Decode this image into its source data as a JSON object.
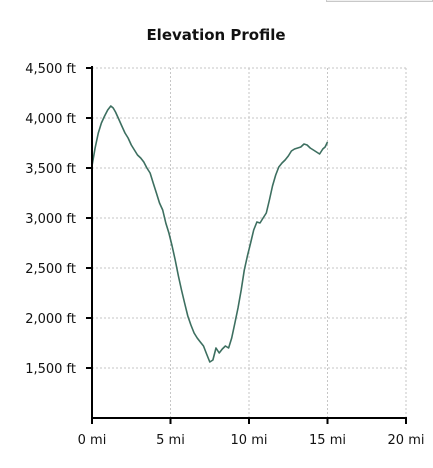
{
  "colors": {
    "line": "#3d6f60",
    "grid": "#c6c6c6",
    "axis": "#000000"
  },
  "chart_data": {
    "type": "line",
    "title": "Elevation Profile",
    "xlabel": "",
    "ylabel": "",
    "x_unit": "mi",
    "y_unit": "ft",
    "xlim": [
      0,
      20
    ],
    "ylim": [
      1000,
      4500
    ],
    "x_ticks": [
      0,
      5,
      10,
      15,
      20
    ],
    "x_tick_labels": [
      "0 mi",
      "5 mi",
      "10 mi",
      "15 mi",
      "20 mi"
    ],
    "y_ticks": [
      1500,
      2000,
      2500,
      3000,
      3500,
      4000,
      4500
    ],
    "y_tick_labels": [
      "1,500 ft",
      "2,000 ft",
      "2,500 ft",
      "3,000 ft",
      "3,500 ft",
      "4,000 ft",
      "4,500 ft"
    ],
    "grid": true,
    "legend": "none",
    "series": [
      {
        "x": [
          0,
          0.2,
          0.4,
          0.6,
          0.8,
          1.0,
          1.2,
          1.35,
          1.5,
          1.7,
          1.9,
          2.1,
          2.3,
          2.5,
          2.7,
          2.9,
          3.1,
          3.3,
          3.5,
          3.7,
          3.9,
          4.1,
          4.3,
          4.5,
          4.7,
          4.9,
          5.1,
          5.3,
          5.5,
          5.7,
          5.9,
          6.1,
          6.3,
          6.5,
          6.7,
          6.9,
          7.1,
          7.3,
          7.5,
          7.7,
          7.9,
          8.1,
          8.3,
          8.5,
          8.7,
          8.9,
          9.1,
          9.3,
          9.5,
          9.7,
          9.9,
          10.1,
          10.3,
          10.5,
          10.7,
          10.9,
          11.1,
          11.3,
          11.5,
          11.7,
          11.9,
          12.1,
          12.3,
          12.5,
          12.7,
          12.9,
          13.1,
          13.3,
          13.5,
          13.7,
          13.9,
          14.1,
          14.3,
          14.5,
          14.7,
          14.85,
          15.0
        ],
        "y": [
          3520,
          3700,
          3850,
          3950,
          4020,
          4080,
          4120,
          4100,
          4060,
          3990,
          3920,
          3850,
          3800,
          3730,
          3680,
          3630,
          3600,
          3560,
          3500,
          3450,
          3350,
          3250,
          3150,
          3080,
          2950,
          2850,
          2720,
          2580,
          2420,
          2280,
          2150,
          2020,
          1930,
          1850,
          1800,
          1760,
          1720,
          1640,
          1560,
          1580,
          1700,
          1650,
          1690,
          1720,
          1700,
          1800,
          1950,
          2100,
          2280,
          2480,
          2620,
          2750,
          2880,
          2960,
          2950,
          3000,
          3050,
          3180,
          3320,
          3430,
          3510,
          3550,
          3580,
          3620,
          3670,
          3690,
          3700,
          3710,
          3740,
          3730,
          3700,
          3680,
          3660,
          3640,
          3690,
          3710,
          3760
        ]
      }
    ]
  }
}
